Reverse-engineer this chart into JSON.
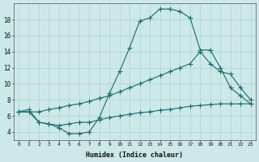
{
  "xlabel": "Humidex (Indice chaleur)",
  "bg_color": "#cde8e8",
  "line_color": "#1a6b6b",
  "grid_color": "#add4d4",
  "xlim_min": -0.5,
  "xlim_max": 23.5,
  "ylim_min": 3.0,
  "ylim_max": 20.0,
  "xticks": [
    0,
    1,
    2,
    3,
    4,
    5,
    6,
    7,
    8,
    9,
    10,
    11,
    12,
    13,
    14,
    15,
    16,
    17,
    18,
    19,
    20,
    21,
    22,
    23
  ],
  "yticks": [
    4,
    6,
    8,
    10,
    12,
    14,
    16,
    18
  ],
  "line_curve_x": [
    0,
    1,
    2,
    3,
    4,
    5,
    6,
    7,
    8,
    9,
    10,
    11,
    12,
    13,
    14,
    15,
    16,
    17,
    18,
    19,
    20,
    21,
    22,
    23
  ],
  "line_curve_y": [
    6.5,
    6.8,
    5.2,
    5.0,
    4.5,
    3.8,
    3.8,
    4.0,
    5.8,
    8.8,
    11.5,
    14.5,
    17.8,
    18.2,
    19.3,
    19.3,
    19.0,
    18.2,
    14.2,
    14.2,
    12.0,
    9.5,
    8.5,
    7.5
  ],
  "line_upper_x": [
    0,
    2,
    3,
    4,
    5,
    6,
    7,
    8,
    9,
    10,
    11,
    12,
    13,
    14,
    15,
    16,
    17,
    18,
    19,
    20,
    21,
    22,
    23
  ],
  "line_upper_y": [
    6.5,
    6.5,
    6.8,
    7.0,
    7.3,
    7.5,
    7.8,
    8.2,
    8.5,
    9.0,
    9.5,
    10.0,
    10.5,
    11.0,
    11.5,
    12.0,
    12.5,
    14.0,
    12.5,
    11.5,
    11.2,
    9.5,
    8.0
  ],
  "line_lower_x": [
    0,
    1,
    2,
    3,
    4,
    5,
    6,
    7,
    8,
    9,
    10,
    11,
    12,
    13,
    14,
    15,
    16,
    17,
    18,
    19,
    20,
    21,
    22,
    23
  ],
  "line_lower_y": [
    6.5,
    6.5,
    5.2,
    5.0,
    4.8,
    5.0,
    5.2,
    5.2,
    5.5,
    5.8,
    6.0,
    6.2,
    6.4,
    6.5,
    6.7,
    6.8,
    7.0,
    7.2,
    7.3,
    7.4,
    7.5,
    7.5,
    7.5,
    7.5
  ]
}
